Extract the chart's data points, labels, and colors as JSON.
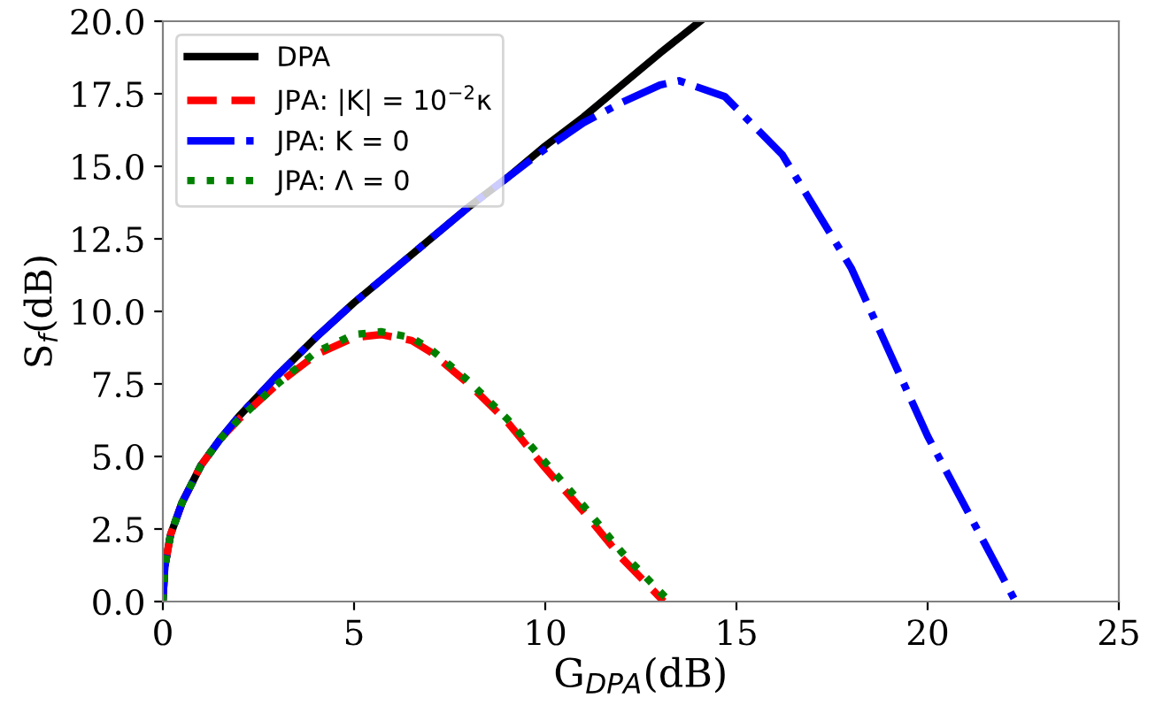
{
  "chart_data": {
    "type": "line",
    "xlabel": "G$_{DPA}$(dB)",
    "ylabel": "S$_{f}$(dB)",
    "xlim": [
      0,
      25
    ],
    "ylim": [
      0,
      20
    ],
    "xticks": [
      0,
      5,
      10,
      15,
      20,
      25
    ],
    "yticks": [
      {
        "value": 0,
        "label": "0.0"
      },
      2.5,
      {
        "value": 5,
        "label": "5.0"
      },
      7.5,
      {
        "value": 10,
        "label": "10.0"
      },
      12.5,
      {
        "value": 15,
        "label": "15.0"
      },
      17.5,
      {
        "value": 20,
        "label": "20.0"
      }
    ],
    "grid": false,
    "legend": "top left",
    "marker": "none",
    "series": [
      {
        "name": "DPA",
        "color": "#000000",
        "line_style": "solid",
        "x": [
          0,
          0.05,
          0.2,
          0.5,
          1,
          1.5,
          2,
          3,
          4,
          5,
          6,
          7,
          8,
          9,
          10,
          11,
          12,
          13,
          14.05
        ],
        "values": [
          0,
          1.2,
          2.3,
          3.4,
          4.7,
          5.6,
          6.4,
          7.8,
          9.1,
          10.3,
          11.4,
          12.5,
          13.6,
          14.6,
          15.7,
          16.7,
          17.8,
          18.9,
          20
        ]
      },
      {
        "name": "JPA: |K| = 10$^{−2}$κ",
        "color": "#ff0000",
        "line_style": "dashed",
        "x": [
          0,
          0.05,
          0.2,
          0.5,
          1,
          1.5,
          2,
          2.5,
          3,
          4,
          5,
          5.7,
          6.5,
          7,
          8,
          9,
          10,
          11,
          12,
          13.1
        ],
        "values": [
          0,
          1.2,
          2.3,
          3.4,
          4.7,
          5.6,
          6.3,
          6.9,
          7.5,
          8.5,
          9.1,
          9.2,
          9.0,
          8.6,
          7.5,
          6.2,
          4.6,
          3.1,
          1.5,
          0
        ]
      },
      {
        "name": "JPA: K = 0",
        "color": "#0000ff",
        "line_style": "dashdot",
        "x": [
          0,
          0.05,
          0.2,
          0.5,
          1,
          1.5,
          2,
          3,
          4,
          5,
          6,
          7,
          8,
          9,
          10,
          11,
          12,
          13,
          13.5,
          14.7,
          16.2,
          18,
          20,
          22.3
        ],
        "values": [
          0,
          1.2,
          2.3,
          3.4,
          4.7,
          5.6,
          6.4,
          7.8,
          9.1,
          10.3,
          11.4,
          12.5,
          13.6,
          14.6,
          15.6,
          16.5,
          17.2,
          17.8,
          17.95,
          17.4,
          15.4,
          11.5,
          5.7,
          0
        ]
      },
      {
        "name": "JPA: Λ = 0",
        "color": "#008000",
        "line_style": "dotted",
        "x": [
          0,
          0.05,
          0.2,
          0.5,
          1,
          1.5,
          2,
          2.5,
          3,
          4,
          5,
          5.7,
          6.5,
          7,
          8,
          9,
          10,
          11,
          12,
          13.25
        ],
        "values": [
          0,
          1.2,
          2.3,
          3.4,
          4.7,
          5.6,
          6.3,
          6.9,
          7.5,
          8.6,
          9.2,
          9.3,
          9.1,
          8.7,
          7.6,
          6.3,
          4.8,
          3.3,
          1.7,
          0
        ]
      }
    ]
  }
}
